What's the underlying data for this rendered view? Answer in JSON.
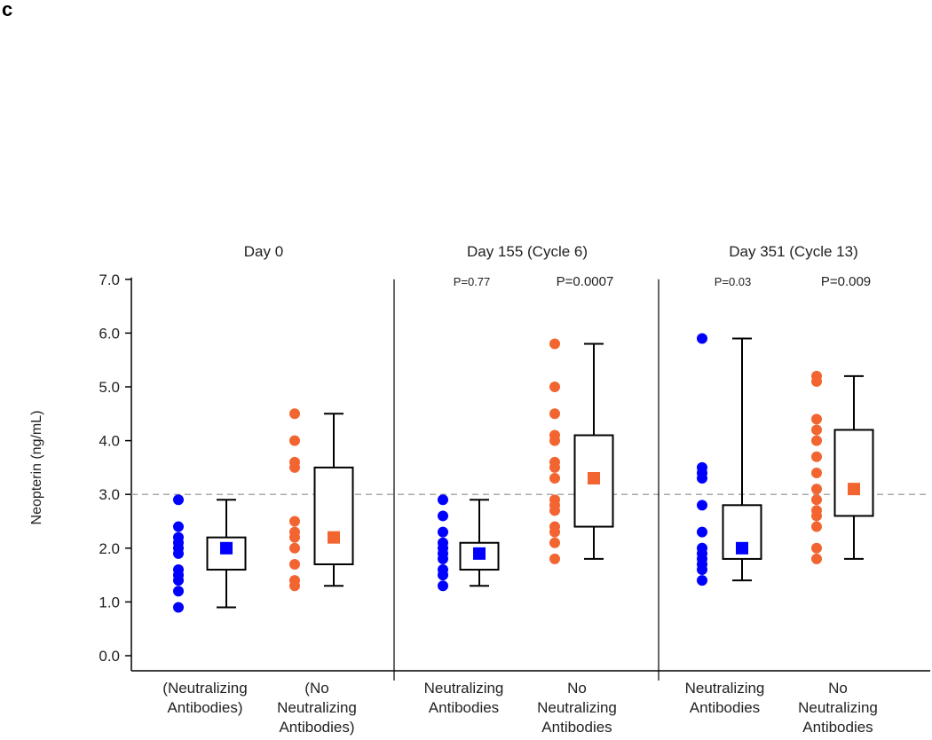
{
  "panel_letter": "c",
  "chart_data": {
    "type": "box-scatter",
    "ylabel": "Neopterin (ng/mL)",
    "ylim": [
      0,
      7
    ],
    "yticks": [
      "0.0",
      "1.0",
      "2.0",
      "3.0",
      "4.0",
      "5.0",
      "6.0",
      "7.0"
    ],
    "reference_line": 3.0,
    "colors": {
      "neutralizing": "#0000ff",
      "no_neutralizing": "#f26531"
    },
    "panels": [
      {
        "title": "Day 0",
        "groups": [
          {
            "label": [
              "(Neutralizing",
              "Antibodies)"
            ],
            "series": "neutralizing",
            "p_value": "",
            "points": [
              2.9,
              2.4,
              2.2,
              2.1,
              2.0,
              1.9,
              1.6,
              1.5,
              1.4,
              1.2,
              0.9
            ],
            "box": {
              "q1": 1.6,
              "q3": 2.2,
              "whisker_low": 0.9,
              "whisker_high": 2.9,
              "mean": 2.0
            }
          },
          {
            "label": [
              "(No",
              "Neutralizing",
              "Antibodies)"
            ],
            "series": "no_neutralizing",
            "p_value": "",
            "points": [
              4.5,
              4.0,
              3.6,
              3.5,
              2.5,
              2.3,
              2.2,
              2.0,
              1.7,
              1.4,
              1.3
            ],
            "box": {
              "q1": 1.7,
              "q3": 3.5,
              "whisker_low": 1.3,
              "whisker_high": 4.5,
              "mean": 2.2
            }
          }
        ]
      },
      {
        "title": "Day 155 (Cycle 6)",
        "groups": [
          {
            "label": [
              "Neutralizing",
              "Antibodies"
            ],
            "series": "neutralizing",
            "p_value": "P=0.77",
            "points": [
              2.9,
              2.6,
              2.3,
              2.1,
              2.0,
              1.9,
              1.8,
              1.6,
              1.5,
              1.3
            ],
            "box": {
              "q1": 1.6,
              "q3": 2.1,
              "whisker_low": 1.3,
              "whisker_high": 2.9,
              "mean": 1.9
            }
          },
          {
            "label": [
              "No",
              "Neutralizing",
              "Antibodies"
            ],
            "series": "no_neutralizing",
            "p_value": "P=0.0007",
            "points": [
              5.8,
              5.0,
              4.5,
              4.1,
              4.0,
              3.6,
              3.5,
              3.3,
              2.9,
              2.8,
              2.7,
              2.4,
              2.3,
              2.1,
              1.8
            ],
            "box": {
              "q1": 2.4,
              "q3": 4.1,
              "whisker_low": 1.8,
              "whisker_high": 5.8,
              "mean": 3.3
            }
          }
        ]
      },
      {
        "title": "Day 351 (Cycle 13)",
        "groups": [
          {
            "label": [
              "Neutralizing",
              "Antibodies"
            ],
            "series": "neutralizing",
            "p_value": "P=0.03",
            "points": [
              5.9,
              3.5,
              3.4,
              3.3,
              2.8,
              2.3,
              2.0,
              1.9,
              1.8,
              1.7,
              1.6,
              1.4
            ],
            "box": {
              "q1": 1.8,
              "q3": 2.8,
              "whisker_low": 1.4,
              "whisker_high": 5.9,
              "mean": 2.0
            }
          },
          {
            "label": [
              "No",
              "Neutralizing",
              "Antibodies"
            ],
            "series": "no_neutralizing",
            "p_value": "P=0.009",
            "points": [
              5.2,
              5.1,
              4.4,
              4.2,
              4.0,
              3.7,
              3.4,
              3.1,
              2.9,
              2.7,
              2.6,
              2.4,
              2.0,
              1.8
            ],
            "box": {
              "q1": 2.6,
              "q3": 4.2,
              "whisker_low": 1.8,
              "whisker_high": 5.2,
              "mean": 3.1
            }
          }
        ]
      }
    ]
  }
}
